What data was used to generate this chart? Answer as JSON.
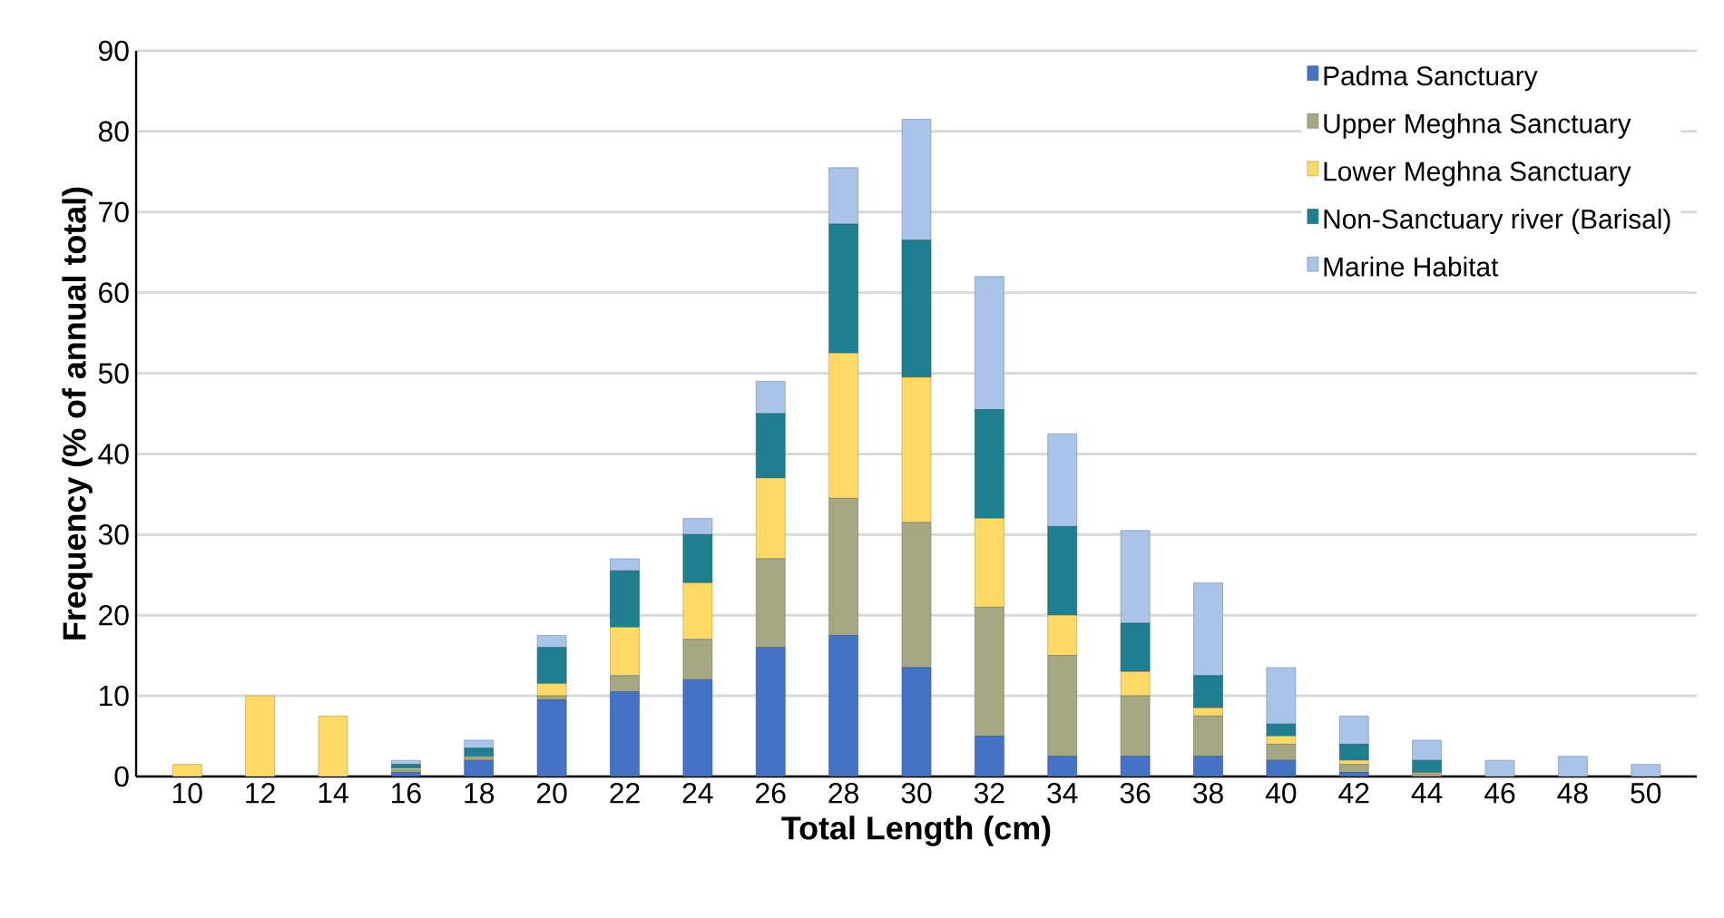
{
  "chart_data": {
    "type": "bar",
    "stacked": true,
    "xlabel": "Total Length (cm)",
    "ylabel": "Frequency (% of annual total)",
    "categories": [
      "10",
      "12",
      "14",
      "16",
      "18",
      "20",
      "22",
      "24",
      "26",
      "28",
      "30",
      "32",
      "34",
      "36",
      "38",
      "40",
      "42",
      "44",
      "46",
      "48",
      "50"
    ],
    "series": [
      {
        "name": "Padma Sanctuary",
        "color": "#4472c4",
        "values": [
          0,
          0,
          0,
          0.5,
          2,
          9.5,
          10.5,
          12,
          16,
          17.5,
          13.5,
          5,
          2.5,
          2.5,
          2.5,
          2,
          0.5,
          0,
          0,
          0,
          0
        ]
      },
      {
        "name": "Upper Meghna Sanctuary",
        "color": "#a5a882",
        "values": [
          0,
          0,
          0,
          0.3,
          0.5,
          0.5,
          2,
          5,
          11,
          17,
          18,
          16,
          12.5,
          7.5,
          5,
          2,
          1,
          0.5,
          0,
          0,
          0
        ]
      },
      {
        "name": "Lower Meghna Sanctuary",
        "color": "#ffd966",
        "values": [
          1.5,
          10,
          7.5,
          0.2,
          0,
          1.5,
          6,
          7,
          10,
          18,
          18,
          11,
          5,
          3,
          1,
          1,
          0.5,
          0,
          0,
          0,
          0
        ]
      },
      {
        "name": "Non-Sanctuary river (Barisal)",
        "color": "#1f7f91",
        "values": [
          0,
          0,
          0,
          0.5,
          1,
          4.5,
          7,
          6,
          8,
          16,
          17,
          13.5,
          11,
          6,
          4,
          1.5,
          2,
          1.5,
          0,
          0,
          0
        ]
      },
      {
        "name": "Marine Habitat",
        "color": "#a9c4e8",
        "values": [
          0,
          0,
          0,
          0.5,
          1,
          1.5,
          1.5,
          2,
          4,
          7,
          15,
          16.5,
          11.5,
          11.5,
          11.5,
          7,
          3.5,
          2.5,
          2,
          2.5,
          1.5
        ]
      }
    ],
    "ylim": [
      0,
      90
    ],
    "yticks": [
      0,
      10,
      20,
      30,
      40,
      50,
      60,
      70,
      80,
      90
    ],
    "grid": "y",
    "legend": "top right"
  }
}
